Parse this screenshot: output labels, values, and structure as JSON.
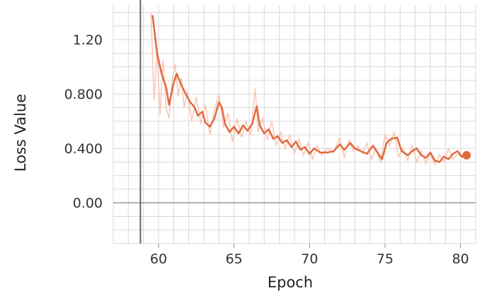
{
  "chart_data": {
    "type": "line",
    "xlabel": "Epoch",
    "ylabel": "Loss Value",
    "xlim": [
      57,
      81
    ],
    "ylim": [
      -0.3,
      1.45
    ],
    "x_ticks": [
      60,
      65,
      70,
      75,
      80
    ],
    "x_tick_labels": [
      "60",
      "65",
      "70",
      "75",
      "80"
    ],
    "y_ticks": [
      0.0,
      0.4,
      0.8,
      1.2
    ],
    "y_tick_labels": [
      "0.00",
      "0.400",
      "0.800",
      "1.20"
    ],
    "grid": true,
    "vertical_marker_x": 58.8,
    "colors": {
      "line": "#e06a3f",
      "raw": "#f6b9a2",
      "grid": "#d8d8d8",
      "zero_line": "#999999",
      "marker_line": "#666666"
    },
    "series": [
      {
        "smoothed": true,
        "x": [
          59.6,
          59.9,
          60.2,
          60.5,
          60.7,
          61.0,
          61.2,
          61.5,
          61.8,
          62.1,
          62.4,
          62.6,
          62.9,
          63.1,
          63.4,
          63.7,
          64.0,
          64.2,
          64.4,
          64.7,
          65.0,
          65.3,
          65.6,
          65.9,
          66.2,
          66.5,
          66.7,
          67.0,
          67.3,
          67.6,
          67.9,
          68.2,
          68.5,
          68.8,
          69.1,
          69.4,
          69.7,
          70.0,
          70.3,
          70.7,
          71.2,
          71.6,
          72.0,
          72.3,
          72.7,
          73.0,
          73.4,
          73.8,
          74.2,
          74.5,
          74.8,
          75.1,
          75.4,
          75.8,
          76.1,
          76.5,
          76.8,
          77.1,
          77.4,
          77.7,
          78.0,
          78.3,
          78.6,
          78.9,
          79.2,
          79.5,
          79.8,
          80.1,
          80.4
        ],
        "y": [
          1.38,
          1.1,
          0.95,
          0.85,
          0.72,
          0.88,
          0.95,
          0.87,
          0.8,
          0.74,
          0.7,
          0.64,
          0.67,
          0.59,
          0.56,
          0.62,
          0.74,
          0.7,
          0.58,
          0.52,
          0.56,
          0.51,
          0.57,
          0.53,
          0.58,
          0.71,
          0.57,
          0.51,
          0.54,
          0.47,
          0.49,
          0.44,
          0.46,
          0.41,
          0.45,
          0.39,
          0.41,
          0.36,
          0.4,
          0.37,
          0.37,
          0.38,
          0.43,
          0.39,
          0.44,
          0.4,
          0.38,
          0.36,
          0.42,
          0.37,
          0.32,
          0.44,
          0.47,
          0.48,
          0.38,
          0.35,
          0.38,
          0.4,
          0.35,
          0.33,
          0.37,
          0.31,
          0.3,
          0.34,
          0.32,
          0.36,
          0.38,
          0.34,
          0.35
        ]
      },
      {
        "smoothed": false,
        "x": [
          59.5,
          59.7,
          59.9,
          60.1,
          60.3,
          60.5,
          60.7,
          60.9,
          61.1,
          61.3,
          61.5,
          61.7,
          61.9,
          62.2,
          62.5,
          62.8,
          63.1,
          63.4,
          63.7,
          64.0,
          64.3,
          64.6,
          64.9,
          65.2,
          65.5,
          65.8,
          66.1,
          66.4,
          66.6,
          66.9,
          67.2,
          67.5,
          67.8,
          68.1,
          68.4,
          68.7,
          69.0,
          69.3,
          69.6,
          69.9,
          70.2,
          70.5,
          70.8,
          71.2,
          71.6,
          72.0,
          72.3,
          72.6,
          72.9,
          73.2,
          73.5,
          73.8,
          74.1,
          74.4,
          74.7,
          75.0,
          75.3,
          75.6,
          75.9,
          76.2,
          76.5,
          76.8,
          77.1,
          77.4,
          77.7,
          78.0,
          78.3,
          78.6,
          78.9,
          79.2,
          79.5,
          79.8,
          80.1,
          80.4
        ],
        "y": [
          1.4,
          0.75,
          1.15,
          0.65,
          1.05,
          0.7,
          0.62,
          0.9,
          1.02,
          0.78,
          0.92,
          0.7,
          0.82,
          0.6,
          0.78,
          0.58,
          0.72,
          0.5,
          0.68,
          0.8,
          0.55,
          0.66,
          0.45,
          0.62,
          0.48,
          0.6,
          0.5,
          0.84,
          0.52,
          0.62,
          0.46,
          0.6,
          0.42,
          0.52,
          0.4,
          0.5,
          0.36,
          0.47,
          0.35,
          0.44,
          0.32,
          0.42,
          0.35,
          0.4,
          0.37,
          0.48,
          0.33,
          0.46,
          0.38,
          0.42,
          0.36,
          0.44,
          0.32,
          0.4,
          0.3,
          0.5,
          0.42,
          0.52,
          0.34,
          0.4,
          0.31,
          0.42,
          0.3,
          0.38,
          0.29,
          0.36,
          0.28,
          0.35,
          0.3,
          0.4,
          0.32,
          0.36,
          0.33,
          0.35
        ]
      }
    ]
  }
}
